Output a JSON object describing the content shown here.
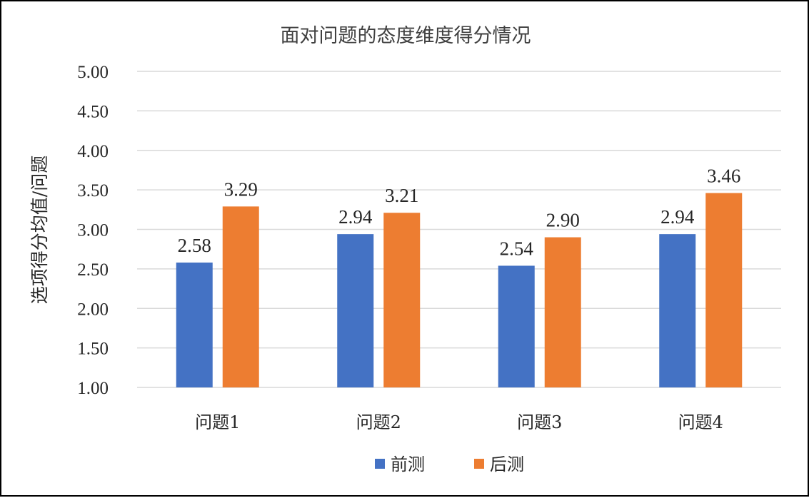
{
  "chart_data": {
    "type": "bar",
    "title": "面对问题的态度维度得分情况",
    "xlabel": "",
    "ylabel": "选项得分均值/问题",
    "categories": [
      "问题1",
      "问题2",
      "问题3",
      "问题4"
    ],
    "series": [
      {
        "name": "前测",
        "values": [
          2.58,
          2.94,
          2.54,
          2.94
        ],
        "color": "#4472C4"
      },
      {
        "name": "后测",
        "values": [
          3.29,
          3.21,
          2.9,
          3.46
        ],
        "color": "#ED7D31"
      }
    ],
    "ylim": [
      1.0,
      5.0
    ],
    "yticks": [
      "1.00",
      "1.50",
      "2.00",
      "2.50",
      "3.00",
      "3.50",
      "4.00",
      "4.50",
      "5.00"
    ],
    "grid": true,
    "legend_position": "bottom",
    "data_labels": true
  }
}
